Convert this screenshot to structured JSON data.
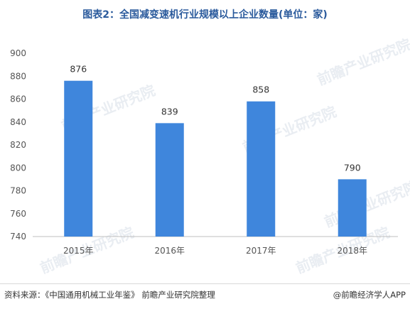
{
  "title": "图表2：全国减变速机行业规模以上企业数量(单位：家)",
  "footer": {
    "source": "资料来源：《中国通用机械工业年鉴》 前瞻产业研究院整理",
    "credit": "@前瞻经济学人APP"
  },
  "watermark": "前瞻产业研究院",
  "chart_data": {
    "type": "bar",
    "categories": [
      "2015年",
      "2016年",
      "2017年",
      "2018年"
    ],
    "values": [
      876,
      839,
      858,
      790
    ],
    "ylim": [
      740,
      900
    ],
    "yticks": [
      740,
      760,
      780,
      800,
      820,
      840,
      860,
      880,
      900
    ],
    "grid": false,
    "data_labels": true,
    "colors": {
      "bar": "#3f86dc",
      "axis": "#bfbfbf"
    }
  }
}
